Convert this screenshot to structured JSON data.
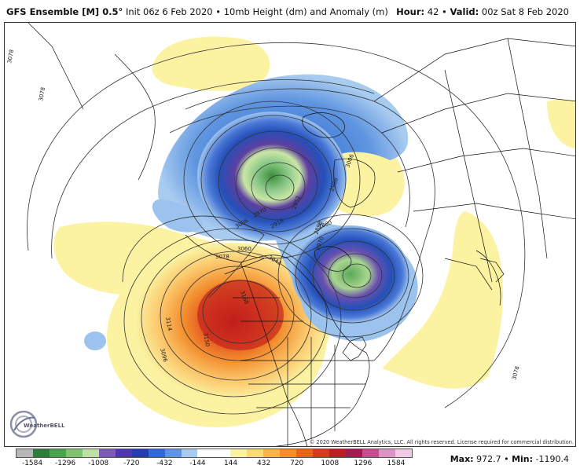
{
  "header": {
    "model": "GFS Ensemble [M] 0.5°",
    "init": "Init 06z 6 Feb 2020",
    "field": "10mb Height (dm) and Anomaly (m)",
    "hour_label": "Hour:",
    "hour_value": "42",
    "valid_label": "Valid:",
    "valid_value": "00z Sat 8 Feb 2020"
  },
  "map": {
    "contour_labels": [
      "3078",
      "3078",
      "3078",
      "3096",
      "3114",
      "3150",
      "3168",
      "3078",
      "3060",
      "3042",
      "3006",
      "2970",
      "2916",
      "2952",
      "2880",
      "2988",
      "2898",
      "2970",
      "3006"
    ],
    "colors": {
      "deep_negative": "#3a8f3a",
      "neg_green": "#8cc98a",
      "neg_lightgreen": "#c9e6a5",
      "neg_purple": "#5d3fa0",
      "neg_blue_dark": "#2450b8",
      "neg_blue": "#4a78d6",
      "neg_blue_light": "#9cc3ee",
      "pos_yellow": "#fbf3a2",
      "pos_orange_light": "#fbc66a",
      "pos_orange": "#f28e2e",
      "pos_red": "#e14a20",
      "pos_deep_red": "#b8171a"
    }
  },
  "logo": {
    "text": "WeatherBELL"
  },
  "copyright": "© 2020 WeatherBELL Analytics, LLC. All rights reserved. License required for commercial distribution.",
  "colorbar": {
    "ticks": [
      "-1584",
      "-1296",
      "-1008",
      "-720",
      "-432",
      "-144",
      "144",
      "432",
      "720",
      "1008",
      "1296",
      "1584"
    ],
    "colors": [
      "#b7b7b7",
      "#2e7d3c",
      "#49a24c",
      "#7fc26f",
      "#bfe0a3",
      "#7e5ab8",
      "#4e3aa6",
      "#243fa8",
      "#2f6bd2",
      "#5f95e0",
      "#a8cbf0",
      "#ffffff",
      "#ffffff",
      "#fbf3a2",
      "#fbd87a",
      "#f9b24c",
      "#f28e2e",
      "#e8631f",
      "#d93a1c",
      "#bd1c22",
      "#a01b54",
      "#c24f8f",
      "#dd94c4",
      "#f0c9e4"
    ]
  },
  "stats": {
    "max_label": "Max:",
    "max_value": "972.7",
    "min_label": "Min:",
    "min_value": "-1190.4"
  }
}
